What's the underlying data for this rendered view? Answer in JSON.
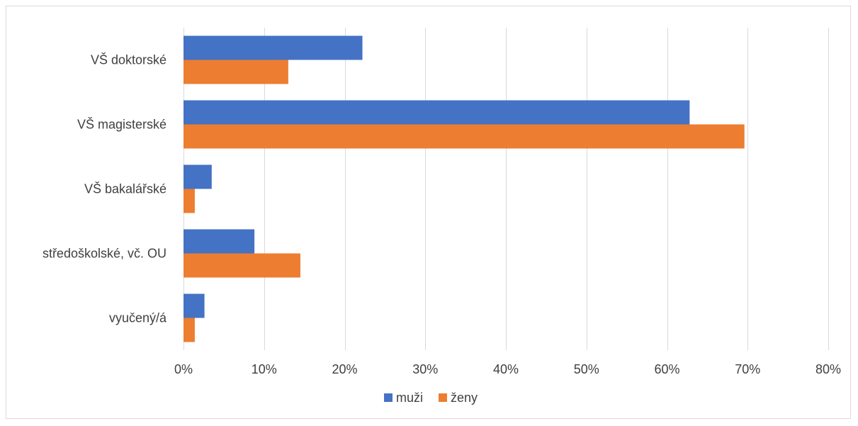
{
  "chart_data": {
    "type": "bar",
    "orientation": "horizontal",
    "title": "",
    "xlabel": "",
    "ylabel": "",
    "categories": [
      "VŠ doktorské",
      "VŠ magisterské",
      "VŠ bakalářské",
      "středoškolské, vč. OU",
      "vyučený/á"
    ],
    "series": [
      {
        "name": "muži",
        "color": "#4472c4",
        "values": [
          22.2,
          62.8,
          3.5,
          8.8,
          2.6
        ]
      },
      {
        "name": "ženy",
        "color": "#ed7d31",
        "values": [
          13.0,
          69.6,
          1.4,
          14.5,
          1.4
        ]
      }
    ],
    "xlim": [
      0,
      80
    ],
    "xticks": [
      0,
      10,
      20,
      30,
      40,
      50,
      60,
      70,
      80
    ],
    "xtick_labels": [
      "0%",
      "10%",
      "20%",
      "30%",
      "40%",
      "50%",
      "60%",
      "70%",
      "80%"
    ],
    "grid": "vertical",
    "legend_position": "bottom"
  }
}
